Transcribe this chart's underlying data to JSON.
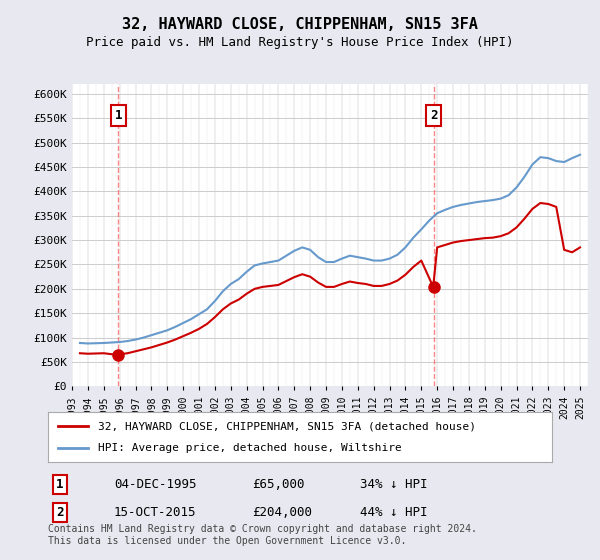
{
  "title": "32, HAYWARD CLOSE, CHIPPENHAM, SN15 3FA",
  "subtitle": "Price paid vs. HM Land Registry's House Price Index (HPI)",
  "hpi_label": "HPI: Average price, detached house, Wiltshire",
  "price_label": "32, HAYWARD CLOSE, CHIPPENHAM, SN15 3FA (detached house)",
  "footer": "Contains HM Land Registry data © Crown copyright and database right 2024.\nThis data is licensed under the Open Government Licence v3.0.",
  "sale1_date": "04-DEC-1995",
  "sale1_price": 65000,
  "sale1_pct": "34% ↓ HPI",
  "sale2_date": "15-OCT-2015",
  "sale2_price": 204000,
  "sale2_pct": "44% ↓ HPI",
  "ylim": [
    0,
    620000
  ],
  "yticks": [
    0,
    50000,
    100000,
    150000,
    200000,
    250000,
    300000,
    350000,
    400000,
    450000,
    500000,
    550000,
    600000
  ],
  "ytick_labels": [
    "£0",
    "£50K",
    "£100K",
    "£150K",
    "£200K",
    "£250K",
    "£300K",
    "£350K",
    "£400K",
    "£450K",
    "£500K",
    "£550K",
    "£600K"
  ],
  "price_color": "#cc0000",
  "hpi_color": "#6699cc",
  "bg_color": "#e8e8f0",
  "plot_bg": "#ffffff",
  "hatch_color": "#cccccc",
  "grid_color": "#cccccc",
  "dashed_color": "#ff6666",
  "hpi_data": [
    [
      1993.5,
      89000
    ],
    [
      1994.0,
      88000
    ],
    [
      1994.5,
      88500
    ],
    [
      1995.0,
      89000
    ],
    [
      1995.5,
      90000
    ],
    [
      1996.0,
      91000
    ],
    [
      1996.5,
      93000
    ],
    [
      1997.0,
      96000
    ],
    [
      1997.5,
      100000
    ],
    [
      1998.0,
      105000
    ],
    [
      1998.5,
      110000
    ],
    [
      1999.0,
      115000
    ],
    [
      1999.5,
      122000
    ],
    [
      2000.0,
      130000
    ],
    [
      2000.5,
      138000
    ],
    [
      2001.0,
      148000
    ],
    [
      2001.5,
      158000
    ],
    [
      2002.0,
      175000
    ],
    [
      2002.5,
      195000
    ],
    [
      2003.0,
      210000
    ],
    [
      2003.5,
      220000
    ],
    [
      2004.0,
      235000
    ],
    [
      2004.5,
      248000
    ],
    [
      2005.0,
      252000
    ],
    [
      2005.5,
      255000
    ],
    [
      2006.0,
      258000
    ],
    [
      2006.5,
      268000
    ],
    [
      2007.0,
      278000
    ],
    [
      2007.5,
      285000
    ],
    [
      2008.0,
      280000
    ],
    [
      2008.5,
      265000
    ],
    [
      2009.0,
      255000
    ],
    [
      2009.5,
      255000
    ],
    [
      2010.0,
      262000
    ],
    [
      2010.5,
      268000
    ],
    [
      2011.0,
      265000
    ],
    [
      2011.5,
      262000
    ],
    [
      2012.0,
      258000
    ],
    [
      2012.5,
      258000
    ],
    [
      2013.0,
      262000
    ],
    [
      2013.5,
      270000
    ],
    [
      2014.0,
      285000
    ],
    [
      2014.5,
      305000
    ],
    [
      2015.0,
      322000
    ],
    [
      2015.5,
      340000
    ],
    [
      2016.0,
      355000
    ],
    [
      2016.5,
      362000
    ],
    [
      2017.0,
      368000
    ],
    [
      2017.5,
      372000
    ],
    [
      2018.0,
      375000
    ],
    [
      2018.5,
      378000
    ],
    [
      2019.0,
      380000
    ],
    [
      2019.5,
      382000
    ],
    [
      2020.0,
      385000
    ],
    [
      2020.5,
      392000
    ],
    [
      2021.0,
      408000
    ],
    [
      2021.5,
      430000
    ],
    [
      2022.0,
      455000
    ],
    [
      2022.5,
      470000
    ],
    [
      2023.0,
      468000
    ],
    [
      2023.5,
      462000
    ],
    [
      2024.0,
      460000
    ],
    [
      2024.5,
      468000
    ],
    [
      2025.0,
      475000
    ]
  ],
  "price_data": [
    [
      1993.5,
      68000
    ],
    [
      1994.0,
      67000
    ],
    [
      1994.5,
      67500
    ],
    [
      1995.0,
      68000
    ],
    [
      1995.75,
      65000
    ],
    [
      1996.0,
      66000
    ],
    [
      1996.5,
      68000
    ],
    [
      1997.0,
      72000
    ],
    [
      1997.5,
      76000
    ],
    [
      1998.0,
      80000
    ],
    [
      1998.5,
      85000
    ],
    [
      1999.0,
      90000
    ],
    [
      1999.5,
      96000
    ],
    [
      2000.0,
      103000
    ],
    [
      2000.5,
      110000
    ],
    [
      2001.0,
      118000
    ],
    [
      2001.5,
      128000
    ],
    [
      2002.0,
      142000
    ],
    [
      2002.5,
      158000
    ],
    [
      2003.0,
      170000
    ],
    [
      2003.5,
      178000
    ],
    [
      2004.0,
      190000
    ],
    [
      2004.5,
      200000
    ],
    [
      2005.0,
      204000
    ],
    [
      2005.5,
      206000
    ],
    [
      2006.0,
      208000
    ],
    [
      2006.5,
      216000
    ],
    [
      2007.0,
      224000
    ],
    [
      2007.5,
      230000
    ],
    [
      2008.0,
      225000
    ],
    [
      2008.5,
      213000
    ],
    [
      2009.0,
      204000
    ],
    [
      2009.5,
      204000
    ],
    [
      2010.0,
      210000
    ],
    [
      2010.5,
      215000
    ],
    [
      2011.0,
      212000
    ],
    [
      2011.5,
      210000
    ],
    [
      2012.0,
      206000
    ],
    [
      2012.5,
      206000
    ],
    [
      2013.0,
      210000
    ],
    [
      2013.5,
      217000
    ],
    [
      2014.0,
      229000
    ],
    [
      2014.5,
      245000
    ],
    [
      2015.0,
      258000
    ],
    [
      2015.75,
      204000
    ],
    [
      2016.0,
      285000
    ],
    [
      2016.5,
      290000
    ],
    [
      2017.0,
      295000
    ],
    [
      2017.5,
      298000
    ],
    [
      2018.0,
      300000
    ],
    [
      2018.5,
      302000
    ],
    [
      2019.0,
      304000
    ],
    [
      2019.5,
      305000
    ],
    [
      2020.0,
      308000
    ],
    [
      2020.5,
      314000
    ],
    [
      2021.0,
      326000
    ],
    [
      2021.5,
      344000
    ],
    [
      2022.0,
      364000
    ],
    [
      2022.5,
      376000
    ],
    [
      2023.0,
      374000
    ],
    [
      2023.5,
      368000
    ],
    [
      2024.0,
      280000
    ],
    [
      2024.5,
      275000
    ],
    [
      2025.0,
      285000
    ]
  ],
  "xtick_years": [
    1993,
    1994,
    1995,
    1996,
    1997,
    1998,
    1999,
    2000,
    2001,
    2002,
    2003,
    2004,
    2005,
    2006,
    2007,
    2008,
    2009,
    2010,
    2011,
    2012,
    2013,
    2014,
    2015,
    2016,
    2017,
    2018,
    2019,
    2020,
    2021,
    2022,
    2023,
    2024,
    2025
  ],
  "sale1_x": 1995.92,
  "sale2_x": 2015.79
}
